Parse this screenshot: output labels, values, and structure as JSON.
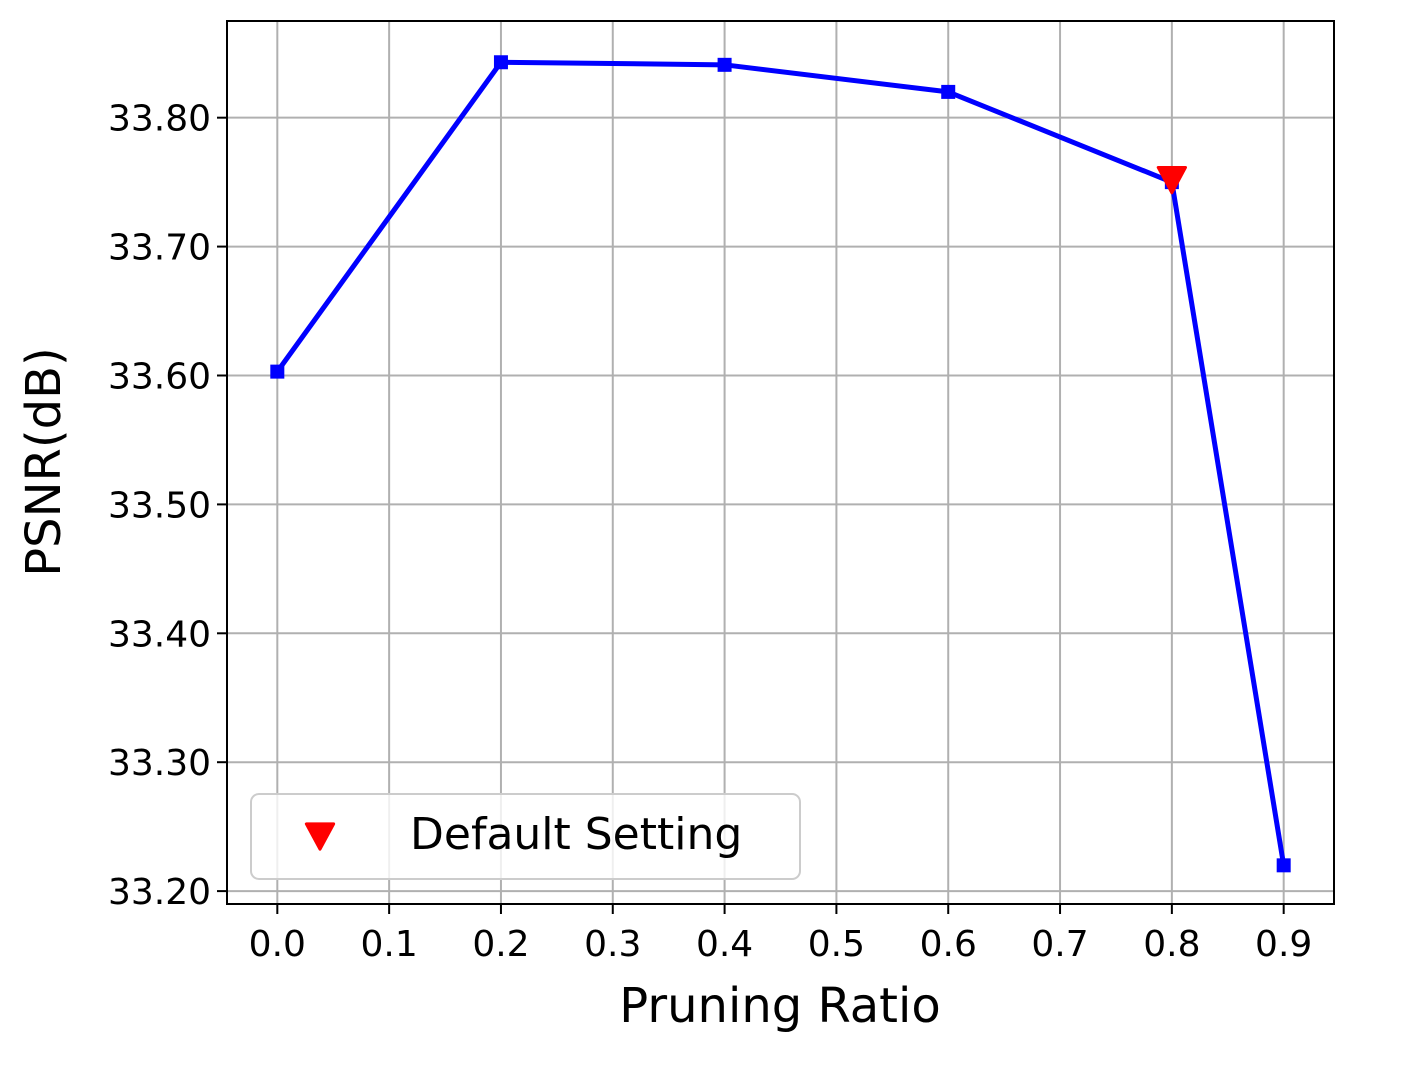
{
  "chart_data": {
    "type": "line",
    "title": "",
    "xlabel": "Pruning Ratio",
    "ylabel": "PSNR(dB)",
    "xlim": [
      -0.045,
      0.945
    ],
    "ylim": [
      33.19,
      33.875
    ],
    "x_ticks": [
      0.0,
      0.1,
      0.2,
      0.3,
      0.4,
      0.5,
      0.6,
      0.7,
      0.8,
      0.9
    ],
    "x_tick_labels": [
      "0.0",
      "0.1",
      "0.2",
      "0.3",
      "0.4",
      "0.5",
      "0.6",
      "0.7",
      "0.8",
      "0.9"
    ],
    "y_ticks": [
      33.2,
      33.3,
      33.4,
      33.5,
      33.6,
      33.7,
      33.8
    ],
    "y_tick_labels": [
      "33.20",
      "33.30",
      "33.40",
      "33.50",
      "33.60",
      "33.70",
      "33.80"
    ],
    "grid": true,
    "series": [
      {
        "x": [
          0.0,
          0.2,
          0.4,
          0.6,
          0.8,
          0.9
        ],
        "y": [
          33.603,
          33.843,
          33.841,
          33.82,
          33.75,
          33.22
        ],
        "color": "#0000ff",
        "marker": "square"
      },
      {
        "name": "Default Setting",
        "x": [
          0.8
        ],
        "y": [
          33.752
        ],
        "color": "#ff0000",
        "marker": "triangle-down"
      }
    ],
    "legend": {
      "position": "lower-left",
      "entries": [
        "Default Setting"
      ]
    }
  }
}
